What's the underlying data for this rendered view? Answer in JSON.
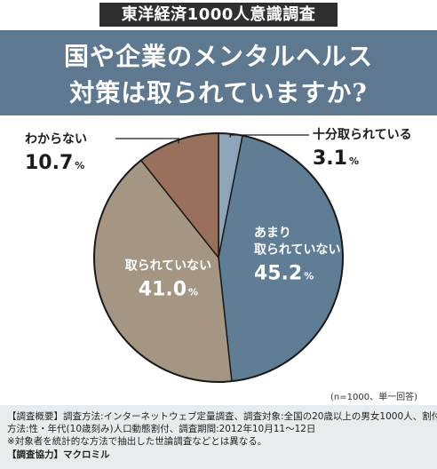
{
  "series_tag": "東洋経済1000人意識調査",
  "title_line1": "国や企業のメンタルヘルス",
  "title_line2": "対策は取られていますか?",
  "chart_data": {
    "type": "pie",
    "title": "国や企業のメンタルヘルス対策は取られていますか?",
    "slices": [
      {
        "label": "十分取られている",
        "value": 3.1,
        "display": "3.1",
        "color": "#8da4ba"
      },
      {
        "label_lines": [
          "あまり",
          "取られていない"
        ],
        "label": "あまり取られていない",
        "value": 45.2,
        "display": "45.2",
        "color": "#607d96"
      },
      {
        "label": "取られていない",
        "value": 41.0,
        "display": "41.0",
        "color": "#a59683"
      },
      {
        "label": "わからない",
        "value": 10.7,
        "display": "10.7",
        "color": "#99705b"
      }
    ],
    "unit": "%",
    "note": "(n=1000、単一回答)"
  },
  "footer": {
    "line1": "【調査概要】調査方法:インターネットウェブ定量調査、調査対象:全国の20歳以上の男女1000人、割付",
    "line2": "方法:性・年代(10歳刻み)人口動態割付、調査期間:2012年10月11〜12日",
    "line3": "※対象者を統計的な方法で抽出した世論調査などとは異なる。",
    "line4_label": "【調査協力】",
    "line4_value": "マクロミル"
  }
}
